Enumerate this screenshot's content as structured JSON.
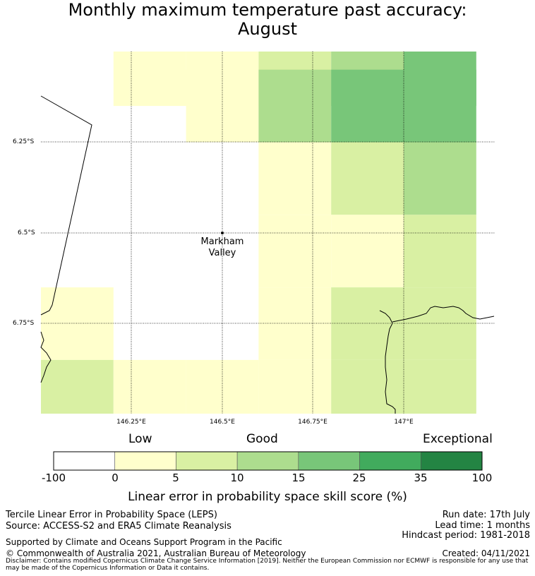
{
  "title_line1": "Monthly maximum temperature past accuracy:",
  "title_line2": "August",
  "map": {
    "latitude_labels": [
      "6.25°S",
      "6.5°S",
      "6.75°S"
    ],
    "longitude_labels": [
      "146.25°E",
      "146.5°E",
      "146.75°E",
      "147°E"
    ],
    "town": {
      "name_line1": "Markham",
      "name_line2": "Valley"
    },
    "grid_cells": [
      {
        "lon": 146.1,
        "lat": -6.05,
        "cat": 0
      },
      {
        "lon": 146.3,
        "lat": -6.05,
        "cat": 1
      },
      {
        "lon": 146.5,
        "lat": -6.05,
        "cat": 1
      },
      {
        "lon": 146.7,
        "lat": -6.05,
        "cat": 2
      },
      {
        "lon": 146.9,
        "lat": -6.05,
        "cat": 3
      },
      {
        "lon": 147.1,
        "lat": -6.05,
        "cat": 4
      },
      {
        "lon": 146.5,
        "lat": -6.15,
        "cat": 1
      },
      {
        "lon": 146.7,
        "lat": -6.15,
        "cat": 3
      },
      {
        "lon": 146.9,
        "lat": -6.15,
        "cat": 4
      },
      {
        "lon": 147.1,
        "lat": -6.15,
        "cat": 4
      },
      {
        "lon": 146.7,
        "lat": -6.35,
        "cat": 1
      },
      {
        "lon": 146.9,
        "lat": -6.35,
        "cat": 2
      },
      {
        "lon": 147.1,
        "lat": -6.35,
        "cat": 3
      },
      {
        "lon": 146.7,
        "lat": -6.55,
        "cat": 1
      },
      {
        "lon": 146.9,
        "lat": -6.55,
        "cat": 1
      },
      {
        "lon": 147.1,
        "lat": -6.55,
        "cat": 2
      },
      {
        "lon": 146.1,
        "lat": -6.75,
        "cat": 1
      },
      {
        "lon": 146.7,
        "lat": -6.75,
        "cat": 1
      },
      {
        "lon": 146.9,
        "lat": -6.75,
        "cat": 2
      },
      {
        "lon": 147.1,
        "lat": -6.75,
        "cat": 2
      },
      {
        "lon": 146.1,
        "lat": -6.95,
        "cat": 2
      },
      {
        "lon": 146.3,
        "lat": -6.95,
        "cat": 1
      },
      {
        "lon": 146.5,
        "lat": -6.95,
        "cat": 1
      },
      {
        "lon": 146.7,
        "lat": -6.95,
        "cat": 1
      },
      {
        "lon": 146.9,
        "lat": -6.95,
        "cat": 2
      },
      {
        "lon": 147.1,
        "lat": -6.95,
        "cat": 2
      }
    ]
  },
  "colorbar": {
    "category_labels": {
      "low": "Low",
      "good": "Good",
      "exceptional": "Exceptional"
    },
    "ticks": [
      "-100",
      "0",
      "5",
      "10",
      "15",
      "25",
      "35",
      "100"
    ],
    "colors": [
      "#ffffff",
      "#ffffcc",
      "#d9f0a3",
      "#addd8e",
      "#78c679",
      "#41ab5d",
      "#238443"
    ],
    "title": "Linear error in probability space skill score (%)"
  },
  "footer": {
    "line1": "Tercile Linear Error in Probability Space (LEPS)",
    "line2": "Source: ACCESS-S2 and ERA5 Climate Reanalysis",
    "run_date": "Run date: 17th July",
    "lead_time": "Lead time: 1 months",
    "hindcast": "Hindcast period: 1981-2018",
    "support": "Supported by Climate and Oceans Support Program in the Pacific",
    "copyright": "© Commonwealth of Australia 2021, Australian Bureau of Meteorology",
    "created": "Created: 04/11/2021",
    "disclaimer": "Disclaimer: Contains modified Copernicus Climate Change Service Information [2019]. Neither the European Commission nor ECMWF is responsible for any use that may be made of the Copernicus Information or Data it contains."
  }
}
